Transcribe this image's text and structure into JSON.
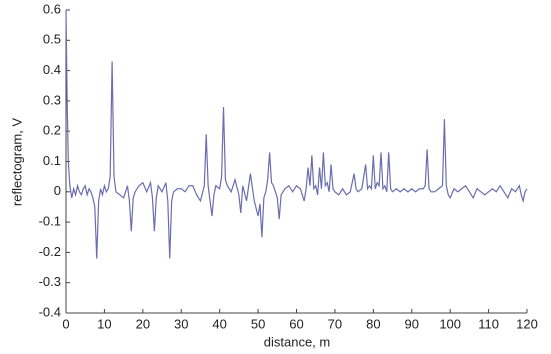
{
  "chart_data": {
    "type": "line",
    "xlabel": "distance, m",
    "ylabel": "reflectogram, V",
    "xlim": [
      0,
      120
    ],
    "ylim": [
      -0.4,
      0.6
    ],
    "xticks": [
      0,
      10,
      20,
      30,
      40,
      50,
      60,
      70,
      80,
      90,
      100,
      110,
      120
    ],
    "yticks": [
      -0.4,
      -0.3,
      -0.2,
      -0.1,
      0,
      0.1,
      0.2,
      0.3,
      0.4,
      0.5,
      0.6
    ],
    "grid": false,
    "x": [
      0,
      0.3,
      0.6,
      1,
      1.5,
      2,
      2.5,
      3,
      3.5,
      4,
      4.5,
      5,
      5.5,
      6,
      6.5,
      7,
      7.5,
      8,
      8.5,
      9,
      9.5,
      10,
      10.5,
      11,
      11.5,
      12,
      12.5,
      13,
      14,
      15,
      16,
      16.5,
      17,
      17.5,
      18,
      19,
      20,
      21,
      22,
      22.5,
      23,
      23.5,
      24,
      25,
      26,
      26.5,
      27,
      27.5,
      28,
      29,
      30,
      31,
      32,
      33,
      34,
      35,
      36,
      36.5,
      37,
      37.5,
      38,
      38.5,
      39,
      40,
      40.5,
      41,
      41.5,
      42,
      43,
      44,
      45,
      45.5,
      46,
      47,
      48,
      49,
      50,
      50.5,
      51,
      51.5,
      52,
      52.5,
      53,
      53.5,
      54,
      55,
      55.5,
      56,
      57,
      58,
      59,
      60,
      61,
      62,
      62.5,
      63,
      63.5,
      64,
      64.5,
      65,
      65.5,
      66,
      66.5,
      67,
      67.5,
      68,
      68.5,
      69,
      69.5,
      70,
      71,
      72,
      73,
      74,
      75,
      75.5,
      76,
      77,
      78,
      78.5,
      79,
      79.5,
      80,
      80.5,
      81,
      81.5,
      82,
      82.5,
      83,
      83.5,
      84,
      84.5,
      85,
      86,
      87,
      88,
      89,
      90,
      91,
      92,
      93,
      93.5,
      94,
      94.5,
      95,
      96,
      97,
      98,
      98.5,
      99,
      99.5,
      100,
      101,
      102,
      103,
      104,
      105,
      106,
      107,
      108,
      109,
      110,
      111,
      112,
      113,
      114,
      115,
      116,
      117,
      118,
      118.5,
      119,
      119.5,
      120
    ],
    "series": [
      {
        "name": "reflectogram",
        "color": "#6a6db0",
        "values": [
          0.6,
          0.3,
          0.1,
          0.02,
          -0.02,
          0.01,
          -0.01,
          0.02,
          0,
          -0.01,
          0.01,
          0.02,
          -0.01,
          0.01,
          0,
          -0.02,
          -0.05,
          -0.22,
          -0.03,
          0.01,
          -0.01,
          0.02,
          0,
          0.01,
          0.05,
          0.43,
          0.05,
          0,
          -0.01,
          -0.02,
          0.02,
          -0.03,
          -0.13,
          -0.02,
          0,
          0.02,
          0.03,
          0,
          0.03,
          -0.02,
          -0.13,
          -0.02,
          0.02,
          0,
          0.03,
          -0.03,
          -0.22,
          -0.03,
          0,
          0.01,
          0.01,
          0,
          0.02,
          0.02,
          -0.01,
          -0.03,
          0.02,
          0.19,
          0.02,
          -0.03,
          -0.08,
          -0.01,
          0.02,
          0.01,
          0.05,
          0.28,
          0.04,
          0.02,
          0,
          0.04,
          -0.01,
          -0.07,
          0.02,
          -0.03,
          0.06,
          -0.03,
          -0.08,
          -0.04,
          -0.15,
          -0.02,
          0,
          0.04,
          0.13,
          0.03,
          0.02,
          -0.02,
          -0.09,
          -0.01,
          0.01,
          0.02,
          0,
          0.02,
          0.01,
          -0.03,
          0.01,
          0.08,
          0.02,
          0.12,
          0.01,
          0.02,
          -0.01,
          0.08,
          0.01,
          0.13,
          0.02,
          0.03,
          0,
          0.09,
          0.01,
          0,
          -0.01,
          0.01,
          -0.01,
          0,
          0.06,
          0.01,
          0,
          0.01,
          0.09,
          0.01,
          0.02,
          0.01,
          0.12,
          0.01,
          0.03,
          0.02,
          0.13,
          0.01,
          0.02,
          0,
          0.13,
          0.01,
          0,
          0.01,
          0,
          0.01,
          0,
          0.01,
          0,
          0.01,
          0.01,
          0.02,
          0.14,
          0.01,
          0,
          0,
          0.01,
          0.02,
          0.24,
          0.02,
          -0.01,
          -0.02,
          0.01,
          0,
          0.01,
          0.02,
          0,
          -0.02,
          0.01,
          0,
          -0.01,
          0,
          0.01,
          0,
          0.02,
          0,
          -0.02,
          0.01,
          0,
          0.02,
          -0.01,
          -0.03,
          0,
          0.01
        ]
      }
    ]
  }
}
